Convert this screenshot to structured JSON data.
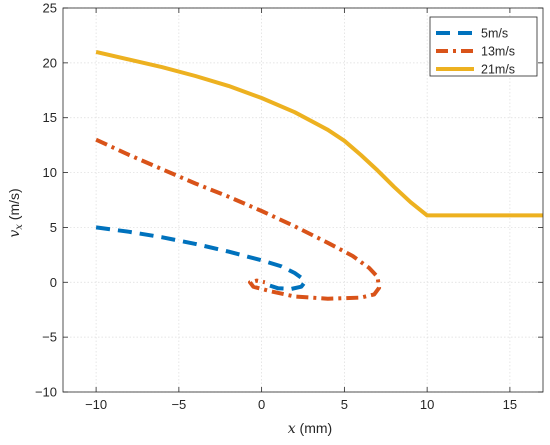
{
  "chart_data": {
    "type": "line",
    "xlabel": {
      "var": "x",
      "unit": " (mm)"
    },
    "ylabel": {
      "var": "v",
      "sub": "x",
      "unit": " (m/s)"
    },
    "xlim": [
      -12,
      17
    ],
    "ylim": [
      -10,
      25
    ],
    "xticks": [
      -10,
      -5,
      0,
      5,
      10,
      15
    ],
    "yticks": [
      -10,
      -5,
      0,
      5,
      10,
      15,
      20,
      25
    ],
    "grid": true,
    "legend_position": "top-right",
    "series": [
      {
        "name": "5m/s",
        "color": "#0072BD",
        "style": "dashed",
        "points": [
          [
            -10,
            5.0
          ],
          [
            -8,
            4.6
          ],
          [
            -6,
            4.1
          ],
          [
            -4,
            3.5
          ],
          [
            -2,
            2.8
          ],
          [
            0,
            2.0
          ],
          [
            1.2,
            1.45
          ],
          [
            2.0,
            0.85
          ],
          [
            2.5,
            0.3
          ],
          [
            2.6,
            0.0
          ],
          [
            2.4,
            -0.4
          ],
          [
            1.8,
            -0.6
          ],
          [
            1.0,
            -0.55
          ],
          [
            0.5,
            -0.3
          ]
        ]
      },
      {
        "name": "13m/s",
        "color": "#D95319",
        "style": "dash-dot",
        "points": [
          [
            -10,
            13.0
          ],
          [
            -8,
            11.6
          ],
          [
            -6,
            10.3
          ],
          [
            -4,
            9.0
          ],
          [
            -2,
            7.8
          ],
          [
            0,
            6.5
          ],
          [
            2,
            5.1
          ],
          [
            4,
            3.6
          ],
          [
            5.5,
            2.4
          ],
          [
            6.5,
            1.3
          ],
          [
            7.0,
            0.5
          ],
          [
            7.1,
            -0.5
          ],
          [
            6.8,
            -1.1
          ],
          [
            6.0,
            -1.4
          ],
          [
            4.0,
            -1.5
          ],
          [
            2.0,
            -1.3
          ],
          [
            0.5,
            -0.8
          ],
          [
            -0.5,
            -0.4
          ],
          [
            -0.7,
            0.0
          ],
          [
            -0.3,
            0.15
          ],
          [
            0.2,
            0.0
          ]
        ]
      },
      {
        "name": "21m/s",
        "color": "#EDB120",
        "style": "solid",
        "points": [
          [
            -10,
            21.0
          ],
          [
            -8,
            20.3
          ],
          [
            -6,
            19.6
          ],
          [
            -4,
            18.8
          ],
          [
            -2,
            17.9
          ],
          [
            0,
            16.8
          ],
          [
            2,
            15.5
          ],
          [
            4,
            13.9
          ],
          [
            5,
            12.9
          ],
          [
            6,
            11.6
          ],
          [
            7,
            10.2
          ],
          [
            8,
            8.7
          ],
          [
            9,
            7.3
          ],
          [
            10,
            6.1
          ],
          [
            17,
            6.1
          ]
        ]
      }
    ]
  }
}
